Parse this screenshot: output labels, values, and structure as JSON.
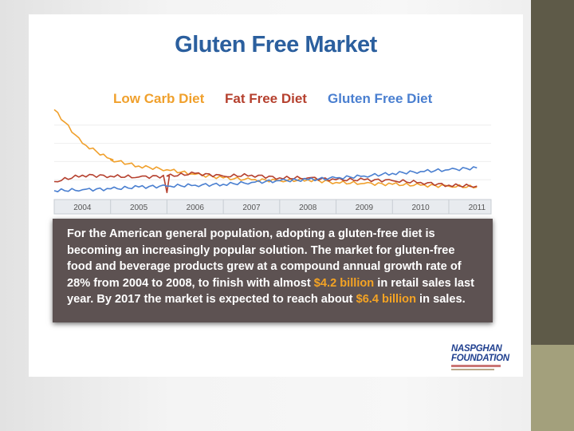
{
  "slide": {
    "title": "Gluten Free Market",
    "paragraph": {
      "part1": "For the American general population, adopting a gluten-free diet is becoming an increasingly popular solution. The market for gluten-free food and beverage products grew at a compound annual growth rate of 28% from 2004 to 2008, to finish with almost ",
      "highlight1": "$4.2 billion",
      "part2": " in retail sales last year. By 2017 the market is expected to reach about ",
      "highlight2": "$6.4 billion",
      "part3": " in sales."
    },
    "logo": {
      "line1": "NASPGHAN",
      "line2": "FOUNDATION"
    }
  },
  "colors": {
    "title": "#2b5f9e",
    "low_carb": "#f0a02c",
    "fat_free": "#b5402e",
    "gluten_free": "#4a7fd0",
    "text_box": "#5d5252",
    "highlight": "#f4a324"
  },
  "chart_data": {
    "type": "line",
    "x": [
      "2004",
      "2004.5",
      "2005",
      "2005.5",
      "2006",
      "2006.5",
      "2007",
      "2007.5",
      "2008",
      "2008.5",
      "2009",
      "2009.5",
      "2010",
      "2010.5",
      "2011",
      "2011.5"
    ],
    "categories": [
      "2004",
      "2005",
      "2006",
      "2007",
      "2008",
      "2009",
      "2010",
      "2011"
    ],
    "series": [
      {
        "name": "Low Carb Diet",
        "color": "#f0a02c",
        "values": [
          97,
          60,
          42,
          35,
          31,
          26,
          22,
          20,
          19,
          20,
          17,
          16,
          15,
          14,
          13,
          12
        ]
      },
      {
        "name": "Fat Free Diet",
        "color": "#b5402e",
        "values": [
          18,
          25,
          24,
          23,
          24,
          27,
          24,
          25,
          22,
          22,
          20,
          20,
          19,
          17,
          14,
          13
        ]
      },
      {
        "name": "Gluten Free Diet",
        "color": "#4a7fd0",
        "values": [
          8,
          9,
          10,
          12,
          13,
          14,
          15,
          17,
          19,
          20,
          22,
          24,
          27,
          29,
          31,
          33
        ]
      }
    ],
    "spikes": [
      {
        "series": "Low Carb Diet",
        "x": "2005",
        "value": 43
      },
      {
        "series": "Fat Free Diet",
        "x": "2006",
        "value": 6
      }
    ],
    "ylim": [
      0,
      100
    ],
    "grid": true,
    "legend_position": "top"
  }
}
